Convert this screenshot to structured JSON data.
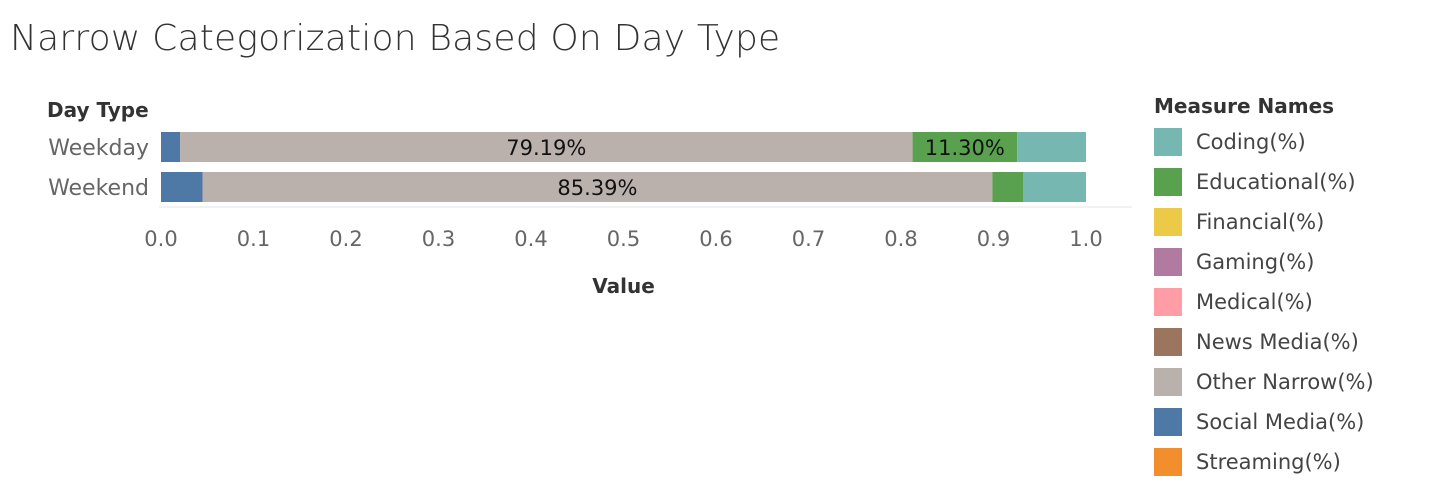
{
  "chart_data": {
    "type": "bar",
    "orientation": "horizontal",
    "stacked": true,
    "title": "Narrow Categorization Based On Day Type",
    "row_header": "Day Type",
    "xlabel": "Value",
    "xlim": [
      0,
      1
    ],
    "x_ticks": [
      "0.0",
      "0.1",
      "0.2",
      "0.3",
      "0.4",
      "0.5",
      "0.6",
      "0.7",
      "0.8",
      "0.9",
      "1.0"
    ],
    "categories": [
      "Weekday",
      "Weekend"
    ],
    "legend_title": "Measure Names",
    "legend_position": "right",
    "series": [
      {
        "name": "Social Media(%)",
        "color": "#4e79a7",
        "values": [
          0.0206,
          0.0449
        ]
      },
      {
        "name": "Other Narrow(%)",
        "color": "#bab0ac",
        "values": [
          0.7919,
          0.8539
        ]
      },
      {
        "name": "Educational(%)",
        "color": "#59a14f",
        "values": [
          0.113,
          0.0335
        ]
      },
      {
        "name": "Coding(%)",
        "color": "#76b7b2",
        "values": [
          0.0745,
          0.0677
        ]
      }
    ],
    "data_labels": [
      {
        "category": "Weekday",
        "series": "Other Narrow(%)",
        "text": "79.19%"
      },
      {
        "category": "Weekday",
        "series": "Educational(%)",
        "text": "11.30%"
      },
      {
        "category": "Weekend",
        "series": "Other Narrow(%)",
        "text": "85.39%"
      }
    ],
    "legend": [
      {
        "name": "Coding(%)",
        "color": "#76b7b2"
      },
      {
        "name": "Educational(%)",
        "color": "#59a14f"
      },
      {
        "name": "Financial(%)",
        "color": "#edc948"
      },
      {
        "name": "Gaming(%)",
        "color": "#b07aa1"
      },
      {
        "name": "Medical(%)",
        "color": "#ff9da7"
      },
      {
        "name": "News Media(%)",
        "color": "#9c755f"
      },
      {
        "name": "Other Narrow(%)",
        "color": "#bab0ac"
      },
      {
        "name": "Social Media(%)",
        "color": "#4e79a7"
      },
      {
        "name": "Streaming(%)",
        "color": "#f28e2b"
      }
    ]
  }
}
